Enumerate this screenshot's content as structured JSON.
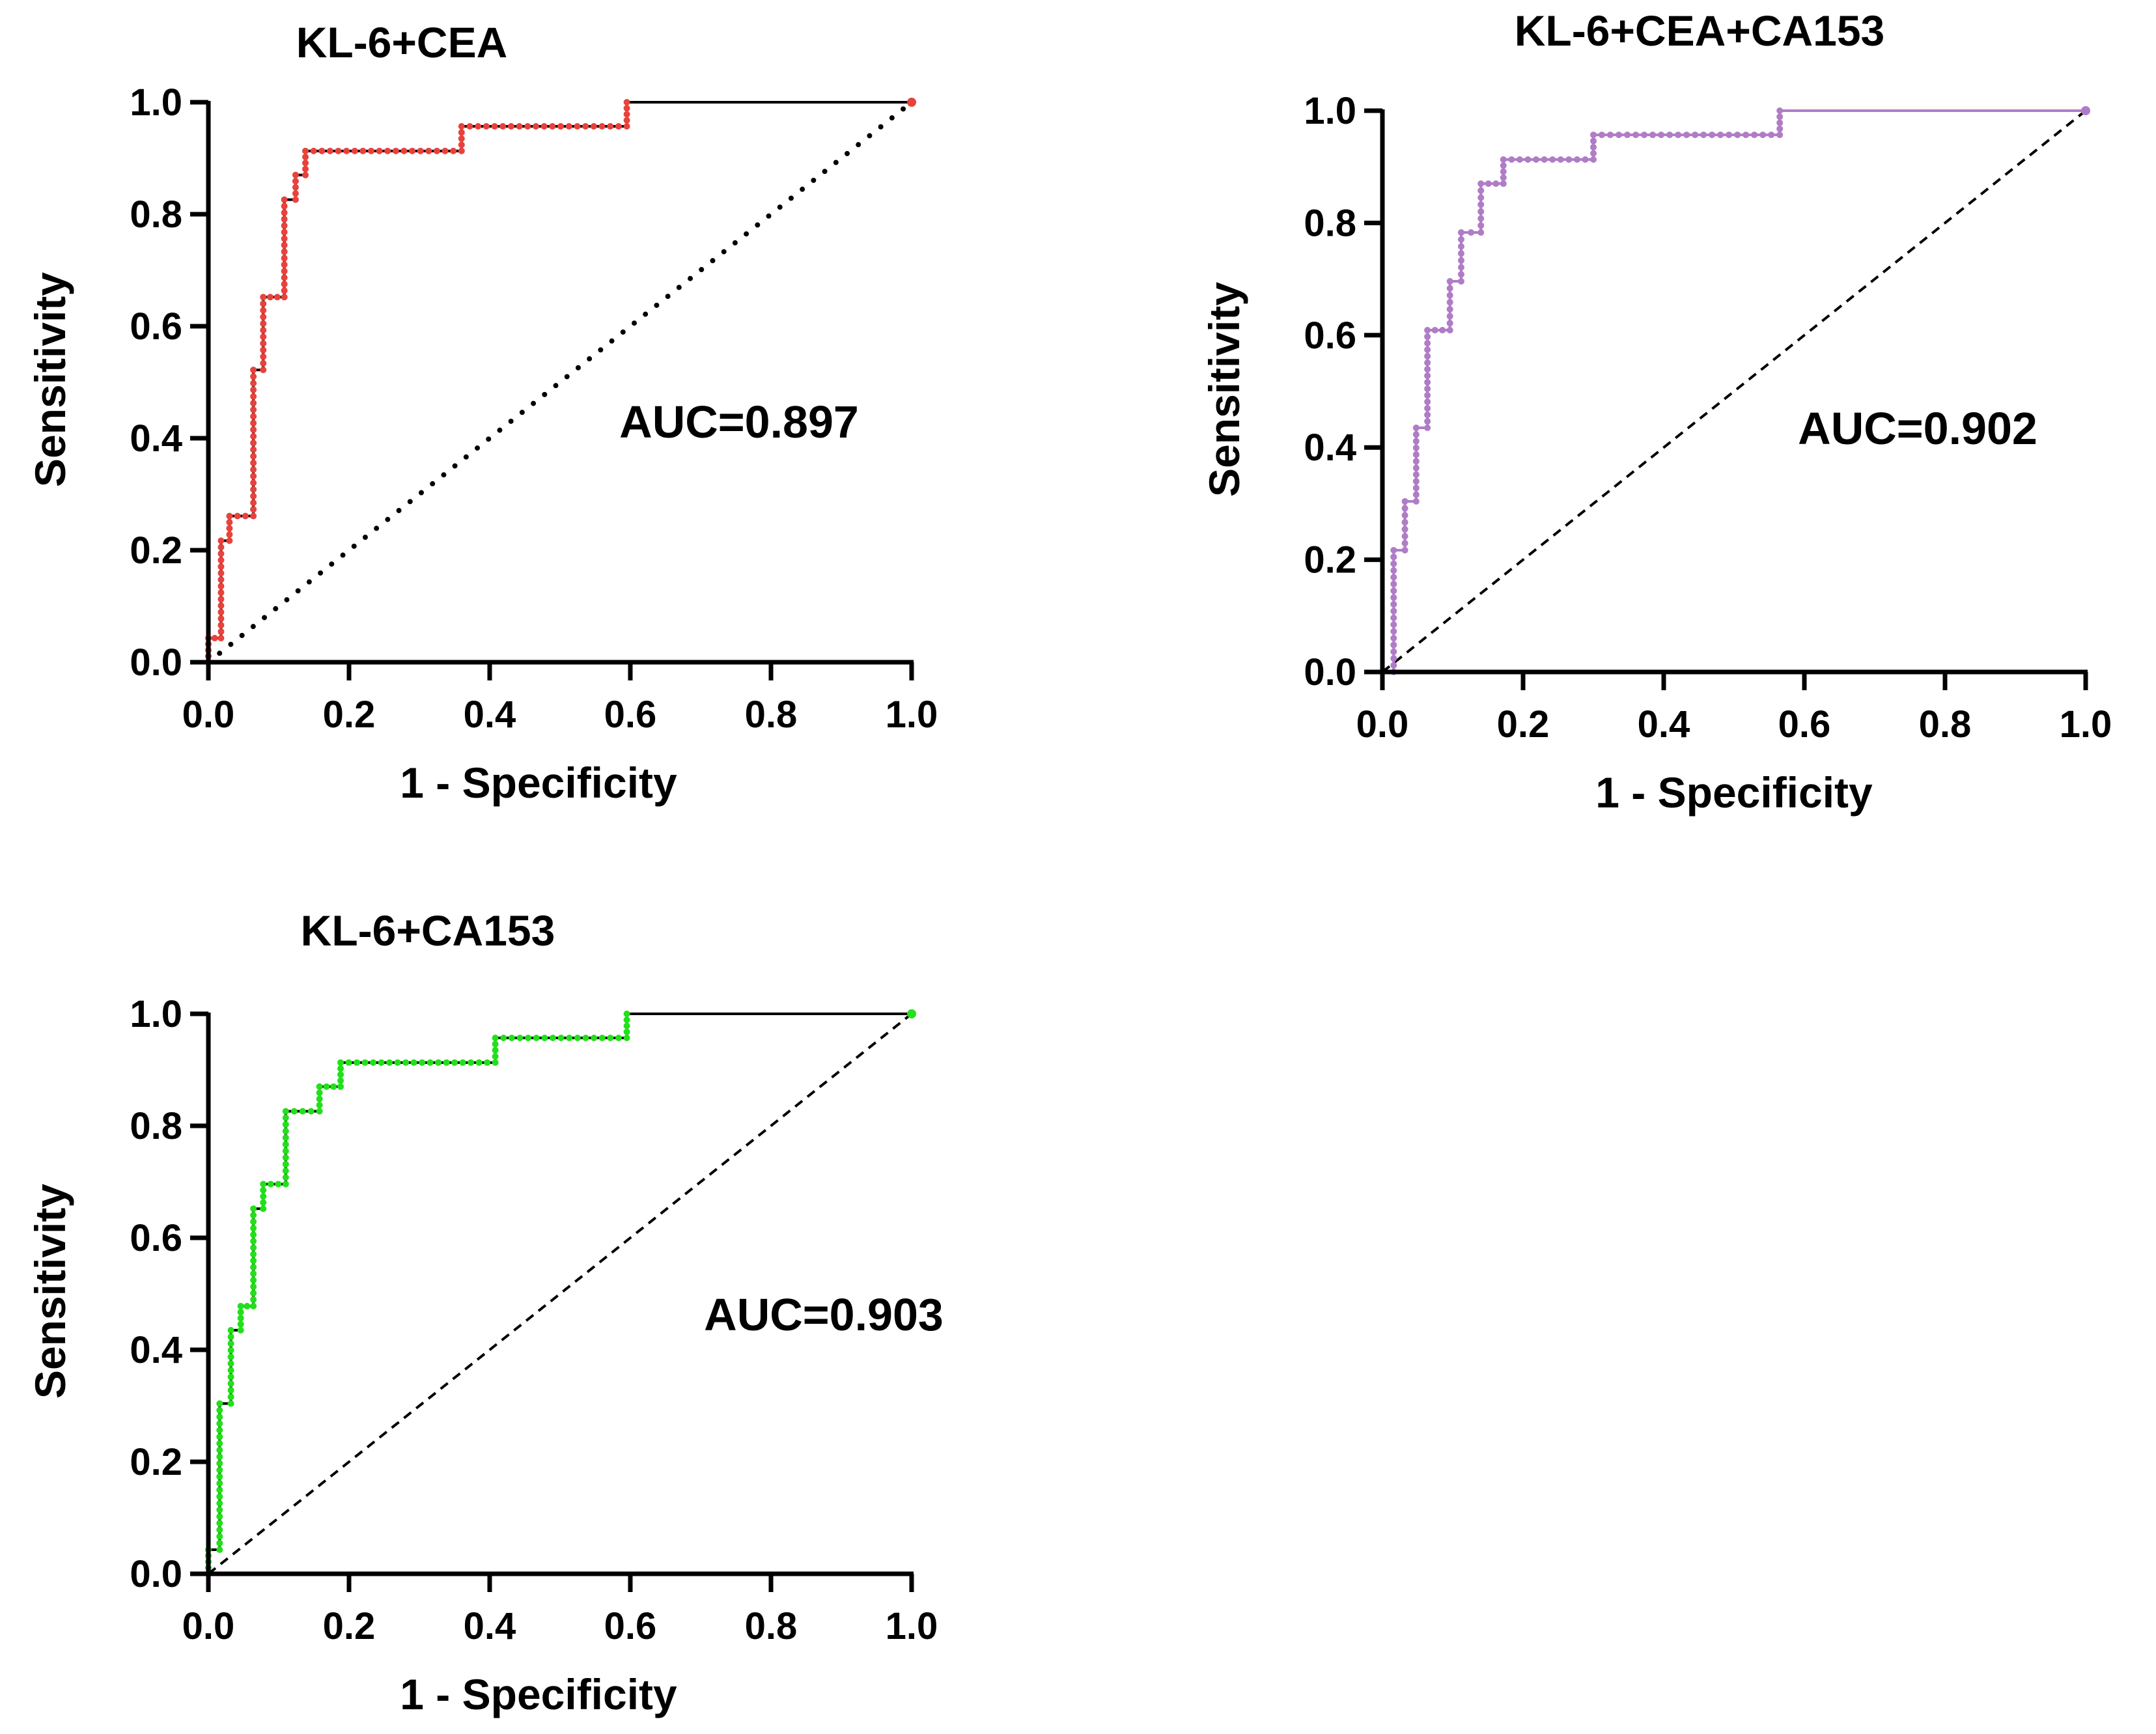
{
  "chart_data": [
    {
      "type": "line",
      "title": "KL-6+CEA",
      "xlabel": "1 - Specificity",
      "ylabel": "Sensitivity",
      "xlim": [
        0,
        1
      ],
      "ylim": [
        0,
        1
      ],
      "xticks": [
        "0.0",
        "0.2",
        "0.4",
        "0.6",
        "0.8",
        "1.0"
      ],
      "yticks": [
        "0.0",
        "0.2",
        "0.4",
        "0.6",
        "0.8",
        "1.0"
      ],
      "annotation": "AUC=0.897",
      "roc_color": "#e8423c",
      "diagonal_style": "dotted",
      "roc": [
        [
          0,
          0
        ],
        [
          0,
          0.043
        ],
        [
          0.018,
          0.043
        ],
        [
          0.018,
          0.217
        ],
        [
          0.03,
          0.217
        ],
        [
          0.03,
          0.261
        ],
        [
          0.064,
          0.261
        ],
        [
          0.064,
          0.522
        ],
        [
          0.078,
          0.522
        ],
        [
          0.078,
          0.652
        ],
        [
          0.108,
          0.652
        ],
        [
          0.108,
          0.826
        ],
        [
          0.124,
          0.826
        ],
        [
          0.124,
          0.87
        ],
        [
          0.138,
          0.87
        ],
        [
          0.138,
          0.913
        ],
        [
          0.36,
          0.913
        ],
        [
          0.36,
          0.957
        ],
        [
          0.595,
          0.957
        ],
        [
          0.595,
          1
        ],
        [
          1,
          1
        ]
      ]
    },
    {
      "type": "line",
      "title": "KL-6+CEA+CA153",
      "xlabel": "1 - Specificity",
      "ylabel": "Sensitivity",
      "xlim": [
        0,
        1
      ],
      "ylim": [
        0,
        1
      ],
      "xticks": [
        "0.0",
        "0.2",
        "0.4",
        "0.6",
        "0.8",
        "1.0"
      ],
      "yticks": [
        "0.0",
        "0.2",
        "0.4",
        "0.6",
        "0.8",
        "1.0"
      ],
      "annotation": "AUC=0.902",
      "roc_color": "#b07cc6",
      "diagonal_style": "dashed",
      "roc": [
        [
          0,
          0
        ],
        [
          0.016,
          0
        ],
        [
          0.016,
          0.217
        ],
        [
          0.032,
          0.217
        ],
        [
          0.032,
          0.304
        ],
        [
          0.048,
          0.304
        ],
        [
          0.048,
          0.435
        ],
        [
          0.064,
          0.435
        ],
        [
          0.064,
          0.609
        ],
        [
          0.096,
          0.609
        ],
        [
          0.096,
          0.696
        ],
        [
          0.112,
          0.696
        ],
        [
          0.112,
          0.783
        ],
        [
          0.14,
          0.783
        ],
        [
          0.14,
          0.87
        ],
        [
          0.172,
          0.87
        ],
        [
          0.172,
          0.913
        ],
        [
          0.3,
          0.913
        ],
        [
          0.3,
          0.957
        ],
        [
          0.565,
          0.957
        ],
        [
          0.565,
          1
        ],
        [
          1,
          1
        ]
      ]
    },
    {
      "type": "line",
      "title": "KL-6+CA153",
      "xlabel": "1 - Specificity",
      "ylabel": "Sensitivity",
      "xlim": [
        0,
        1
      ],
      "ylim": [
        0,
        1
      ],
      "xticks": [
        "0.0",
        "0.2",
        "0.4",
        "0.6",
        "0.8",
        "1.0"
      ],
      "yticks": [
        "0.0",
        "0.2",
        "0.4",
        "0.6",
        "0.8",
        "1.0"
      ],
      "annotation": "AUC=0.903",
      "roc_color": "#22e01a",
      "diagonal_style": "dashed",
      "roc": [
        [
          0,
          0
        ],
        [
          0,
          0.043
        ],
        [
          0.016,
          0.043
        ],
        [
          0.016,
          0.304
        ],
        [
          0.032,
          0.304
        ],
        [
          0.032,
          0.435
        ],
        [
          0.046,
          0.435
        ],
        [
          0.046,
          0.478
        ],
        [
          0.064,
          0.478
        ],
        [
          0.064,
          0.652
        ],
        [
          0.078,
          0.652
        ],
        [
          0.078,
          0.696
        ],
        [
          0.11,
          0.696
        ],
        [
          0.11,
          0.826
        ],
        [
          0.158,
          0.826
        ],
        [
          0.158,
          0.87
        ],
        [
          0.188,
          0.87
        ],
        [
          0.188,
          0.913
        ],
        [
          0.408,
          0.913
        ],
        [
          0.408,
          0.957
        ],
        [
          0.595,
          0.957
        ],
        [
          0.595,
          1
        ],
        [
          1,
          1
        ]
      ]
    }
  ]
}
